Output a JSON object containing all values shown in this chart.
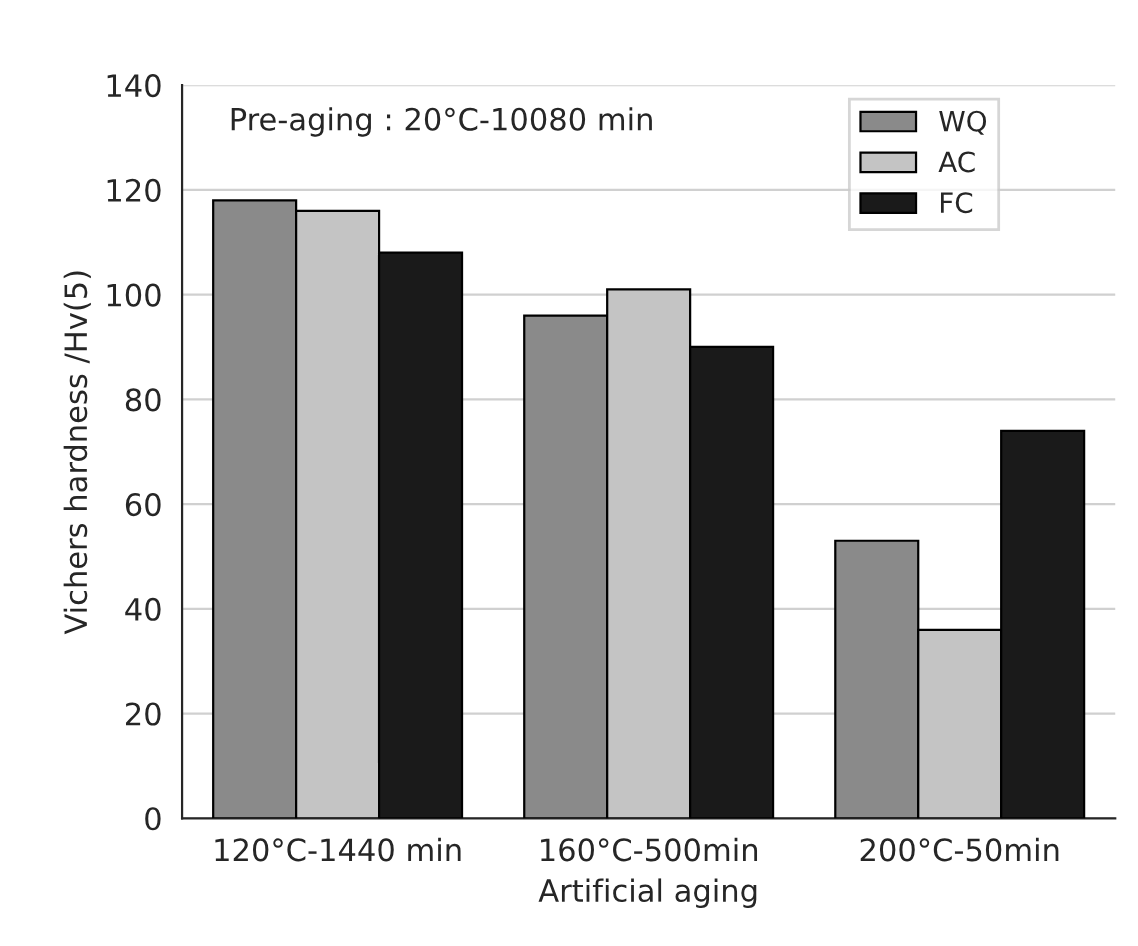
{
  "chart_data": {
    "type": "bar",
    "xlabel": "Artificial aging",
    "ylabel": "Vichers hardness /Hv(5)",
    "categories": [
      "120°C-1440 min",
      "160°C-500min",
      "200°C-50min"
    ],
    "series": [
      {
        "name": "WQ",
        "color": "#8a8a8a",
        "values": [
          118,
          96,
          53
        ]
      },
      {
        "name": "AC",
        "color": "#c4c4c4",
        "values": [
          116,
          101,
          36
        ]
      },
      {
        "name": "FC",
        "color": "#1a1a1a",
        "values": [
          108,
          90,
          74
        ]
      }
    ],
    "ylim": [
      0,
      140
    ],
    "yticks": [
      0,
      20,
      40,
      60,
      80,
      100,
      120,
      140
    ],
    "grid": "y",
    "legend": "top right",
    "annotations": [
      "Pre-aging : 20°C-10080 min"
    ]
  }
}
